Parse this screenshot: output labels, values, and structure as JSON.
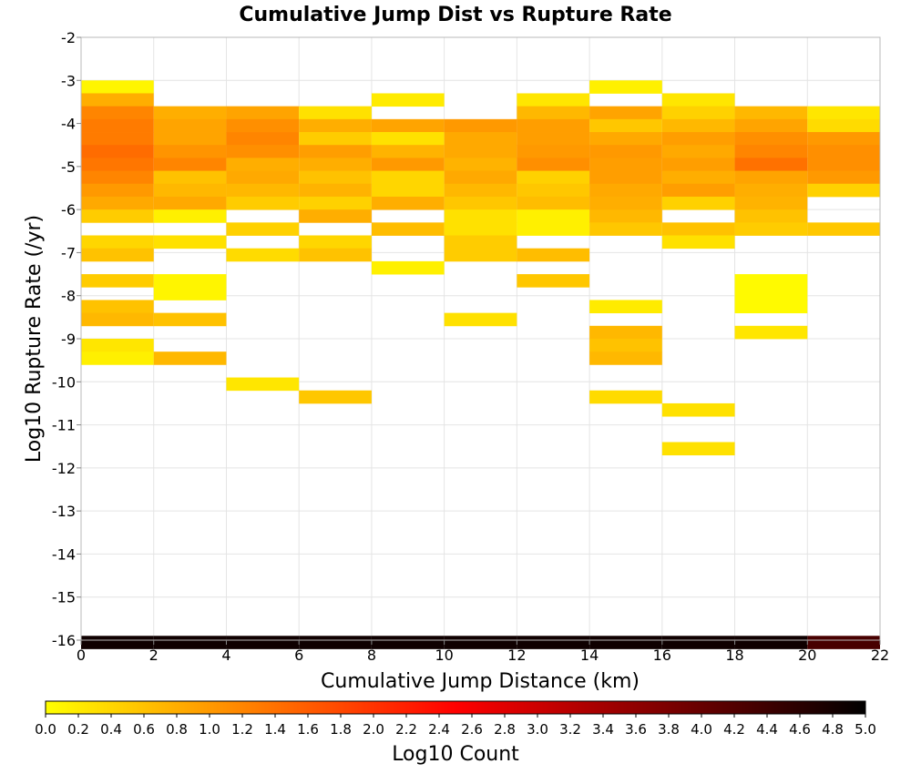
{
  "chart_data": {
    "type": "heatmap",
    "title": "Cumulative Jump Dist vs Rupture Rate",
    "xlabel": "Cumulative Jump Distance (km)",
    "ylabel": "Log10 Rupture Rate (/yr)",
    "xlim": [
      0,
      22
    ],
    "ylim": [
      -16,
      -2
    ],
    "x_ticks": [
      "0",
      "2",
      "4",
      "6",
      "8",
      "10",
      "12",
      "14",
      "16",
      "18",
      "20",
      "22"
    ],
    "y_ticks": [
      "-2",
      "-3",
      "-4",
      "-5",
      "-6",
      "-7",
      "-8",
      "-9",
      "-10",
      "-11",
      "-12",
      "-13",
      "-14",
      "-15",
      "-16"
    ],
    "x_bin_width": 2,
    "y_bin_height": 0.3,
    "grid": true,
    "colorbar": {
      "label": "Log10 Count",
      "range": [
        0.0,
        5.0
      ],
      "ticks": [
        "0.0",
        "0.2",
        "0.4",
        "0.6",
        "0.8",
        "1.0",
        "1.2",
        "1.4",
        "1.6",
        "1.8",
        "2.0",
        "2.2",
        "2.4",
        "2.6",
        "2.8",
        "3.0",
        "3.2",
        "3.4",
        "3.6",
        "3.8",
        "4.0",
        "4.2",
        "4.4",
        "4.6",
        "4.8",
        "5.0"
      ],
      "colors": [
        "#ffff00",
        "#ff8000",
        "#ff0000",
        "#800000",
        "#000000"
      ]
    },
    "columns": [
      {
        "x_start": 0,
        "cells": [
          [
            -3.0,
            0.1
          ],
          [
            -3.3,
            0.8
          ],
          [
            -3.6,
            1.2
          ],
          [
            -3.9,
            1.3
          ],
          [
            -4.2,
            1.3
          ],
          [
            -4.5,
            1.45
          ],
          [
            -4.8,
            1.35
          ],
          [
            -5.1,
            1.2
          ],
          [
            -5.4,
            1.0
          ],
          [
            -5.7,
            0.85
          ],
          [
            -6.0,
            0.5
          ],
          [
            -6.6,
            0.4
          ],
          [
            -6.9,
            0.6
          ],
          [
            -7.5,
            0.5
          ],
          [
            -8.1,
            0.6
          ],
          [
            -8.4,
            0.7
          ],
          [
            -9.0,
            0.25
          ],
          [
            -9.3,
            0.15
          ],
          [
            -15.9,
            4.85
          ]
        ]
      },
      {
        "x_start": 2,
        "cells": [
          [
            -3.6,
            0.8
          ],
          [
            -3.9,
            0.9
          ],
          [
            -4.2,
            0.9
          ],
          [
            -4.5,
            1.05
          ],
          [
            -4.8,
            1.2
          ],
          [
            -5.1,
            0.6
          ],
          [
            -5.4,
            0.7
          ],
          [
            -5.7,
            0.85
          ],
          [
            -6.0,
            0.15
          ],
          [
            -6.6,
            0.3
          ],
          [
            -7.5,
            0.1
          ],
          [
            -7.8,
            0.1
          ],
          [
            -8.4,
            0.6
          ],
          [
            -9.3,
            0.7
          ],
          [
            -15.9,
            4.85
          ]
        ]
      },
      {
        "x_start": 4,
        "cells": [
          [
            -3.6,
            0.9
          ],
          [
            -3.9,
            1.1
          ],
          [
            -4.2,
            1.2
          ],
          [
            -4.5,
            1.1
          ],
          [
            -4.8,
            0.8
          ],
          [
            -5.1,
            0.85
          ],
          [
            -5.4,
            0.7
          ],
          [
            -5.7,
            0.5
          ],
          [
            -6.3,
            0.45
          ],
          [
            -6.9,
            0.35
          ],
          [
            -9.9,
            0.25
          ],
          [
            -15.9,
            4.85
          ]
        ]
      },
      {
        "x_start": 6,
        "cells": [
          [
            -3.6,
            0.3
          ],
          [
            -3.9,
            0.8
          ],
          [
            -4.2,
            0.5
          ],
          [
            -4.5,
            0.95
          ],
          [
            -4.8,
            0.8
          ],
          [
            -5.1,
            0.6
          ],
          [
            -5.4,
            0.75
          ],
          [
            -5.7,
            0.45
          ],
          [
            -6.0,
            0.8
          ],
          [
            -6.6,
            0.4
          ],
          [
            -6.9,
            0.6
          ],
          [
            -10.2,
            0.55
          ],
          [
            -15.9,
            4.85
          ]
        ]
      },
      {
        "x_start": 8,
        "cells": [
          [
            -3.3,
            0.2
          ],
          [
            -3.9,
            0.9
          ],
          [
            -4.2,
            0.3
          ],
          [
            -4.5,
            0.75
          ],
          [
            -4.8,
            1.0
          ],
          [
            -5.1,
            0.4
          ],
          [
            -5.4,
            0.4
          ],
          [
            -5.7,
            0.8
          ],
          [
            -6.3,
            0.65
          ],
          [
            -7.2,
            0.15
          ],
          [
            -15.9,
            4.85
          ]
        ]
      },
      {
        "x_start": 10,
        "cells": [
          [
            -3.9,
            1.0
          ],
          [
            -4.2,
            0.85
          ],
          [
            -4.5,
            0.85
          ],
          [
            -4.8,
            0.75
          ],
          [
            -5.1,
            0.85
          ],
          [
            -5.4,
            0.7
          ],
          [
            -5.7,
            0.55
          ],
          [
            -6.0,
            0.3
          ],
          [
            -6.3,
            0.3
          ],
          [
            -6.6,
            0.5
          ],
          [
            -6.9,
            0.5
          ],
          [
            -8.4,
            0.3
          ],
          [
            -15.9,
            4.85
          ]
        ]
      },
      {
        "x_start": 12,
        "cells": [
          [
            -3.3,
            0.25
          ],
          [
            -3.6,
            0.7
          ],
          [
            -3.9,
            0.95
          ],
          [
            -4.2,
            0.95
          ],
          [
            -4.5,
            1.0
          ],
          [
            -4.8,
            1.1
          ],
          [
            -5.1,
            0.45
          ],
          [
            -5.4,
            0.55
          ],
          [
            -5.7,
            0.65
          ],
          [
            -6.0,
            0.15
          ],
          [
            -6.3,
            0.15
          ],
          [
            -6.9,
            0.65
          ],
          [
            -7.5,
            0.55
          ],
          [
            -15.9,
            4.85
          ]
        ]
      },
      {
        "x_start": 14,
        "cells": [
          [
            -3.0,
            0.15
          ],
          [
            -3.6,
            0.9
          ],
          [
            -3.9,
            0.55
          ],
          [
            -4.2,
            0.85
          ],
          [
            -4.5,
            1.0
          ],
          [
            -4.8,
            0.95
          ],
          [
            -5.1,
            0.95
          ],
          [
            -5.4,
            0.85
          ],
          [
            -5.7,
            0.8
          ],
          [
            -6.0,
            0.7
          ],
          [
            -6.3,
            0.55
          ],
          [
            -8.1,
            0.2
          ],
          [
            -8.7,
            0.7
          ],
          [
            -9.0,
            0.6
          ],
          [
            -9.3,
            0.7
          ],
          [
            -10.2,
            0.35
          ],
          [
            -15.9,
            4.85
          ]
        ]
      },
      {
        "x_start": 16,
        "cells": [
          [
            -3.3,
            0.25
          ],
          [
            -3.6,
            0.45
          ],
          [
            -3.9,
            0.7
          ],
          [
            -4.2,
            0.95
          ],
          [
            -4.5,
            0.85
          ],
          [
            -4.8,
            0.95
          ],
          [
            -5.1,
            0.8
          ],
          [
            -5.4,
            0.95
          ],
          [
            -5.7,
            0.45
          ],
          [
            -6.3,
            0.6
          ],
          [
            -6.6,
            0.3
          ],
          [
            -10.5,
            0.3
          ],
          [
            -11.4,
            0.3
          ],
          [
            -15.9,
            4.85
          ]
        ]
      },
      {
        "x_start": 18,
        "cells": [
          [
            -3.6,
            0.7
          ],
          [
            -3.9,
            0.9
          ],
          [
            -4.2,
            1.1
          ],
          [
            -4.5,
            1.2
          ],
          [
            -4.8,
            1.4
          ],
          [
            -5.1,
            0.9
          ],
          [
            -5.4,
            0.8
          ],
          [
            -5.7,
            0.75
          ],
          [
            -6.0,
            0.6
          ],
          [
            -6.3,
            0.5
          ],
          [
            -7.5,
            0.05
          ],
          [
            -7.8,
            0.05
          ],
          [
            -8.1,
            0.05
          ],
          [
            -8.7,
            0.25
          ],
          [
            -15.9,
            4.85
          ]
        ]
      },
      {
        "x_start": 20,
        "cells": [
          [
            -3.6,
            0.25
          ],
          [
            -3.9,
            0.35
          ],
          [
            -4.2,
            1.0
          ],
          [
            -4.5,
            1.1
          ],
          [
            -4.8,
            1.1
          ],
          [
            -5.1,
            1.0
          ],
          [
            -5.4,
            0.45
          ],
          [
            -6.3,
            0.55
          ],
          [
            -15.9,
            4.3
          ]
        ]
      }
    ]
  }
}
